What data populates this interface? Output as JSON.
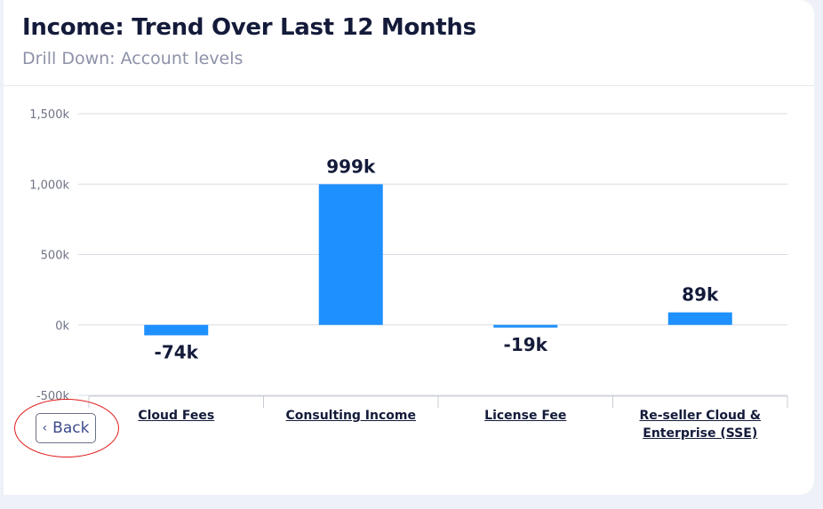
{
  "header": {
    "title": "Income: Trend Over Last 12 Months",
    "subtitle": "Drill Down: Account levels"
  },
  "back_button": {
    "label": "Back",
    "icon": "chevron-left-icon"
  },
  "chart_data": {
    "type": "bar",
    "categories": [
      "Cloud Fees",
      "Consulting Income",
      "License Fee",
      "Re-seller Cloud & Enterprise (SSE)"
    ],
    "values": [
      -74,
      999,
      -19,
      89
    ],
    "value_labels": [
      "-74k",
      "999k",
      "-19k",
      "89k"
    ],
    "unit": "k",
    "y_ticks": [
      -500,
      0,
      500,
      1000,
      1500
    ],
    "y_tick_labels": [
      "-500k",
      "0k",
      "500k",
      "1,000k",
      "1,500k"
    ],
    "ylim": [
      -500,
      1500
    ],
    "bar_color": "#1e90ff",
    "grid": true,
    "xlabel": "",
    "ylabel": ""
  }
}
